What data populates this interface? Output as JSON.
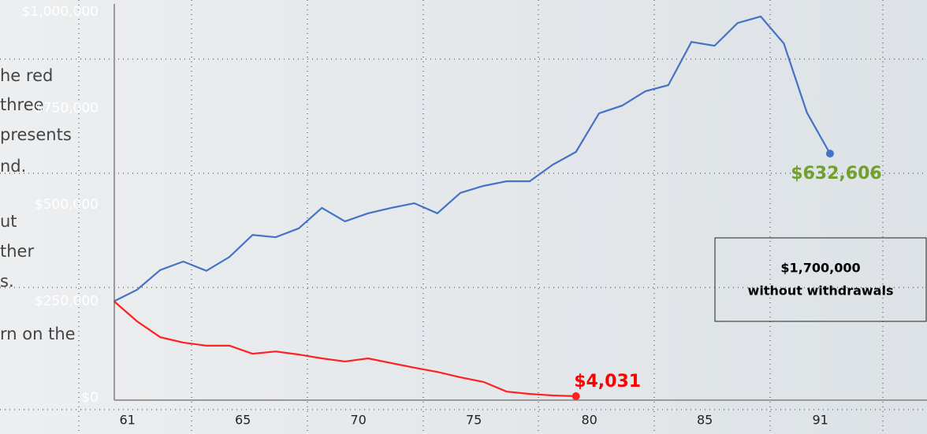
{
  "chart_data": {
    "type": "line",
    "categories": [
      "61",
      null,
      null,
      null,
      null,
      "65",
      null,
      null,
      null,
      null,
      "70",
      null,
      null,
      null,
      null,
      "75",
      null,
      null,
      null,
      null,
      "80",
      null,
      null,
      null,
      null,
      "85",
      null,
      null,
      null,
      null,
      "91",
      null
    ],
    "series": [
      {
        "color": "#4472c4",
        "values": [
          250000,
          280000,
          331000,
          353000,
          329000,
          365000,
          422000,
          416000,
          439000,
          492000,
          457000,
          478000,
          492000,
          504000,
          478000,
          531000,
          549000,
          561000,
          561000,
          604000,
          637000,
          737000,
          757000,
          794000,
          810000,
          922000,
          912000,
          971000,
          988000,
          918000,
          739000,
          632606
        ]
      },
      {
        "color": "#ff2020",
        "values": [
          250000,
          198000,
          157000,
          143000,
          135000,
          135000,
          114000,
          120000,
          112000,
          102000,
          94000,
          102000,
          90000,
          78000,
          67000,
          53000,
          41000,
          16000,
          10000,
          6000,
          4031,
          null,
          null,
          null,
          null,
          null,
          null,
          null,
          null,
          null,
          null,
          null
        ]
      }
    ],
    "ylim": [
      0,
      1000000
    ],
    "yticks": [
      {
        "value": 0,
        "label": "$0"
      },
      {
        "value": 250000,
        "label": "$250,000"
      },
      {
        "value": 500000,
        "label": "$500,000"
      },
      {
        "value": 750000,
        "label": "$750,000"
      },
      {
        "value": 1000000,
        "label": "$1,000,000"
      }
    ],
    "end_labels": [
      "$632,606",
      "$4,031"
    ],
    "end_label_colors": [
      "#70a030",
      "#ff0000"
    ],
    "box_text": [
      "$1,700,000",
      "without withdrawals"
    ]
  },
  "left_text": [
    "he red",
    "three",
    "presents",
    "nd.",
    "ut",
    "ther",
    "s.",
    "rn on the"
  ]
}
